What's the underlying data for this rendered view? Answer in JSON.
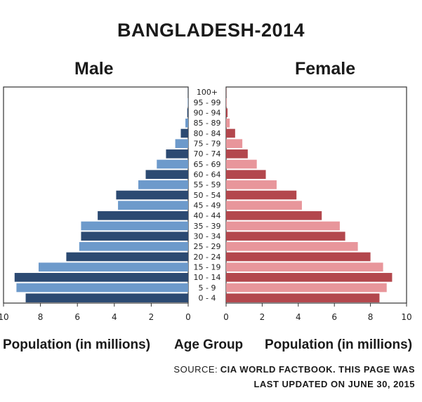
{
  "chart_data": {
    "type": "bar",
    "title": "BANGLADESH-2014",
    "left_label": "Male",
    "right_label": "Female",
    "categories": [
      "0 - 4",
      "5 - 9",
      "10 - 14",
      "15 - 19",
      "20 - 24",
      "25 - 29",
      "30 - 34",
      "35 - 39",
      "40 - 44",
      "45 - 49",
      "50 - 54",
      "55 - 59",
      "60 - 64",
      "65 - 69",
      "70 - 74",
      "75 - 79",
      "80 - 84",
      "85 - 89",
      "90 - 94",
      "95 - 99",
      "100+"
    ],
    "series": [
      {
        "name": "Male",
        "values": [
          8.8,
          9.3,
          9.4,
          8.1,
          6.6,
          5.9,
          5.8,
          5.8,
          4.9,
          3.8,
          3.9,
          2.7,
          2.3,
          1.7,
          1.2,
          0.7,
          0.4,
          0.15,
          0.05,
          0.02,
          0.01
        ]
      },
      {
        "name": "Female",
        "values": [
          8.5,
          8.9,
          9.2,
          8.7,
          8.0,
          7.3,
          6.6,
          6.3,
          5.3,
          4.2,
          3.9,
          2.8,
          2.2,
          1.7,
          1.2,
          0.9,
          0.5,
          0.2,
          0.08,
          0.03,
          0.01
        ]
      }
    ],
    "xlim": [
      0,
      10
    ],
    "x_ticks_left": [
      "10",
      "8",
      "6",
      "4",
      "2",
      "0"
    ],
    "x_ticks_right": [
      "0",
      "2",
      "4",
      "6",
      "8",
      "10"
    ],
    "xlabel_left": "Population (in millions)",
    "xlabel_center": "Age Group",
    "xlabel_right": "Population (in millions)",
    "grid": false,
    "colors": {
      "male_dark": "#2c4a72",
      "male_light": "#6d9acb",
      "female_dark": "#b3474d",
      "female_light": "#e8969b"
    }
  },
  "source": {
    "prefix": "SOURCE:",
    "line1": "CIA WORLD FACTBOOK. THIS PAGE WAS",
    "line2": "LAST UPDATED ON JUNE 30, 2015"
  }
}
